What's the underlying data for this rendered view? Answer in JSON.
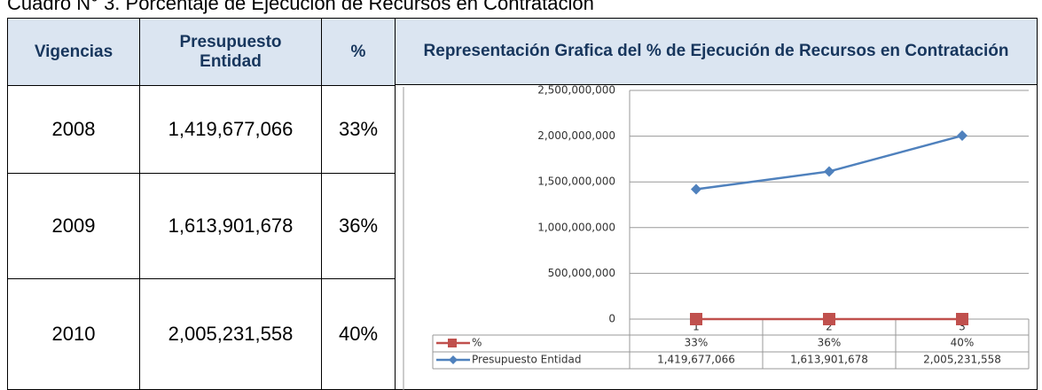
{
  "title": "Cuadro N° 3. Porcentaje de Ejecución de Recursos en Contratación",
  "table": {
    "headers": [
      "Vigencias",
      "Presupuesto Entidad",
      "%"
    ],
    "rows": [
      [
        "2008",
        "1,419,677,066",
        "33%"
      ],
      [
        "2009",
        "1,613,901,678",
        "36%"
      ],
      [
        "2010",
        "2,005,231,558",
        "40%"
      ]
    ]
  },
  "chart_data": {
    "type": "line",
    "title": "Representación Grafica del % de Ejecución de Recursos en Contratación",
    "categories": [
      "1",
      "2",
      "3"
    ],
    "series": [
      {
        "name": "%",
        "color": "#c0504d",
        "values": [
          33,
          36,
          40
        ],
        "value_labels": [
          "33%",
          "36%",
          "40%"
        ]
      },
      {
        "name": "Presupuesto Entidad",
        "color": "#4f81bd",
        "values": [
          1419677066,
          1613901678,
          2005231558
        ],
        "value_labels": [
          "1,419,677,066",
          "1,613,901,678",
          "2,005,231,558"
        ]
      }
    ],
    "ylim": [
      0,
      2500000000
    ],
    "yticks": [
      0,
      {
        "value": 500000000,
        "label": "500,000,000"
      },
      {
        "value": 1000000000,
        "label": "1,000,000,000"
      },
      {
        "value": 1500000000,
        "label": "1,500,000,000"
      },
      {
        "value": 2000000000,
        "label": "2,000,000,000"
      },
      {
        "value": 2500000000,
        "label": "2,500,000,000"
      }
    ],
    "grid": true
  }
}
